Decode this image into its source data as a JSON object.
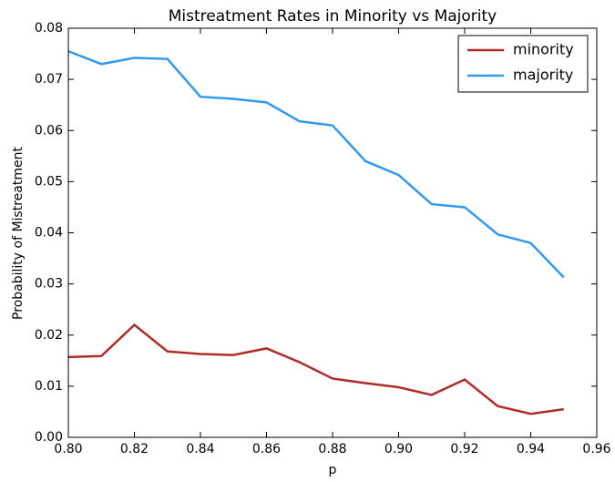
{
  "chart_data": {
    "type": "line",
    "title": "Mistreatment Rates in Minority vs Majority",
    "x_label": "p",
    "y_label": "Probability of Mistreatment",
    "x": [
      0.8,
      0.81,
      0.82,
      0.83,
      0.84,
      0.85,
      0.86,
      0.87,
      0.88,
      0.89,
      0.9,
      0.91,
      0.92,
      0.93,
      0.94,
      0.95
    ],
    "series": [
      {
        "name": "minority",
        "color": "#b22a2a",
        "values": [
          0.0157,
          0.0159,
          0.022,
          0.0168,
          0.0163,
          0.0161,
          0.0174,
          0.0147,
          0.0115,
          0.0106,
          0.0098,
          0.0083,
          0.0113,
          0.0061,
          0.0046,
          0.0055
        ]
      },
      {
        "name": "majority",
        "color": "#3399ee",
        "values": [
          0.0755,
          0.073,
          0.0742,
          0.074,
          0.0666,
          0.0662,
          0.0655,
          0.0618,
          0.061,
          0.054,
          0.0513,
          0.0456,
          0.045,
          0.0397,
          0.038,
          0.0313
        ]
      }
    ],
    "xlim": [
      0.8,
      0.96
    ],
    "xticks": [
      {
        "value": 0.8,
        "label": "0.80"
      },
      {
        "value": 0.82,
        "label": "0.82"
      },
      {
        "value": 0.84,
        "label": "0.84"
      },
      {
        "value": 0.86,
        "label": "0.86"
      },
      {
        "value": 0.88,
        "label": "0.88"
      },
      {
        "value": 0.9,
        "label": "0.90"
      },
      {
        "value": 0.92,
        "label": "0.92"
      },
      {
        "value": 0.94,
        "label": "0.94"
      },
      {
        "value": 0.96,
        "label": "0.96"
      }
    ],
    "ylim": [
      0.0,
      0.08
    ],
    "yticks": [
      {
        "value": 0.0,
        "label": "0.00"
      },
      {
        "value": 0.01,
        "label": "0.01"
      },
      {
        "value": 0.02,
        "label": "0.02"
      },
      {
        "value": 0.03,
        "label": "0.03"
      },
      {
        "value": 0.04,
        "label": "0.04"
      },
      {
        "value": 0.05,
        "label": "0.05"
      },
      {
        "value": 0.06,
        "label": "0.06"
      },
      {
        "value": 0.07,
        "label": "0.07"
      },
      {
        "value": 0.08,
        "label": "0.08"
      }
    ],
    "legend": "upper right",
    "grid": false
  }
}
